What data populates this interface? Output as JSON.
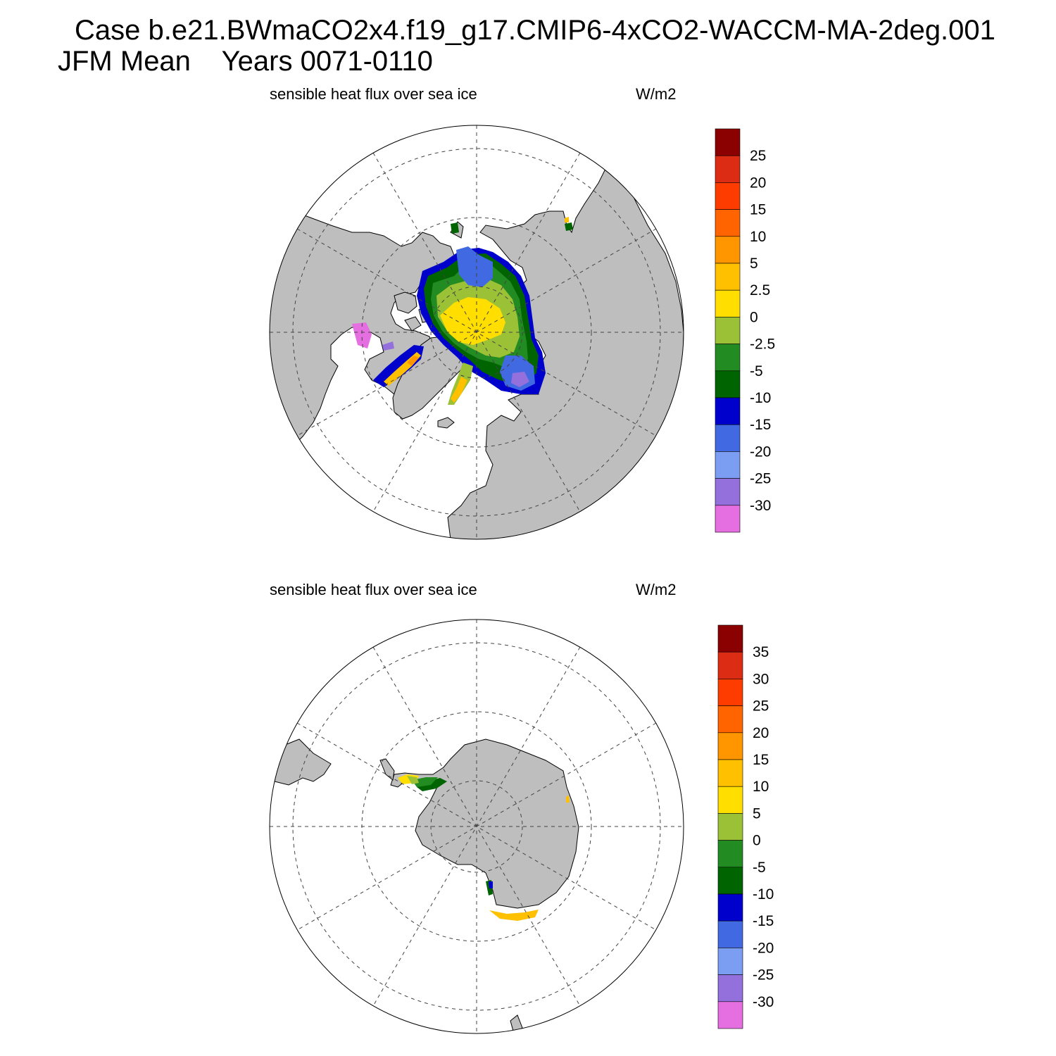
{
  "title": {
    "line1": "Case b.e21.BWmaCO2x4.f19_g17.CMIP6-4xCO2-WACCM-MA-2deg.001",
    "season": "JFM Mean",
    "years": "Years 0071-0110"
  },
  "panels": [
    {
      "id": "north",
      "label": "sensible heat flux over sea ice",
      "units": "W/m2",
      "hemisphere": "Northern",
      "colorbar": {
        "labels": [
          "25",
          "20",
          "15",
          "10",
          "5",
          "2.5",
          "0",
          "-2.5",
          "-5",
          "-10",
          "-15",
          "-20",
          "-25",
          "-30"
        ],
        "colors": [
          "#8b0000",
          "#dc2c14",
          "#ff3c00",
          "#ff6400",
          "#ff9600",
          "#ffc000",
          "#ffde00",
          "#9bc136",
          "#228b22",
          "#006400",
          "#0000cd",
          "#4169e1",
          "#7b9ef2",
          "#9370db",
          "#e56ee0"
        ]
      }
    },
    {
      "id": "south",
      "label": "sensible heat flux over sea ice",
      "units": "W/m2",
      "hemisphere": "Southern",
      "colorbar": {
        "labels": [
          "35",
          "30",
          "25",
          "20",
          "15",
          "10",
          "5",
          "0",
          "-5",
          "-10",
          "-15",
          "-20",
          "-25",
          "-30"
        ],
        "colors": [
          "#8b0000",
          "#dc2c14",
          "#ff3c00",
          "#ff6400",
          "#ff9600",
          "#ffc000",
          "#ffde00",
          "#9bc136",
          "#228b22",
          "#006400",
          "#0000cd",
          "#4169e1",
          "#7b9ef2",
          "#9370db",
          "#e56ee0"
        ]
      }
    }
  ],
  "style": {
    "land": "#bebebe",
    "ocean": "#ffffff",
    "grid": "#666666"
  }
}
